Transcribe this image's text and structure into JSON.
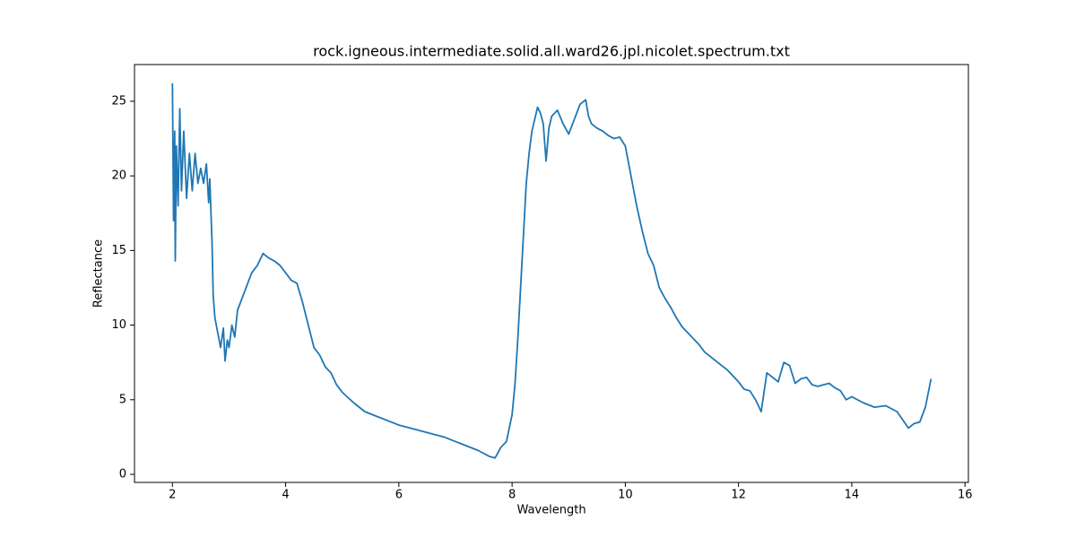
{
  "chart_data": {
    "type": "line",
    "title": "rock.igneous.intermediate.solid.all.ward26.jpl.nicolet.spectrum.txt",
    "x_label": "Wavelength",
    "y_label": "Reflectance",
    "color": "#1f77b4",
    "grid": false,
    "xlim": [
      1.33,
      16.06
    ],
    "ylim": [
      -0.54,
      27.46
    ],
    "xticks": [
      2,
      4,
      6,
      8,
      10,
      12,
      14,
      16
    ],
    "yticks": [
      0,
      5,
      10,
      15,
      20,
      25
    ],
    "x": [
      2.0,
      2.02,
      2.04,
      2.05,
      2.07,
      2.1,
      2.13,
      2.16,
      2.2,
      2.25,
      2.3,
      2.35,
      2.4,
      2.45,
      2.5,
      2.55,
      2.6,
      2.64,
      2.66,
      2.7,
      2.72,
      2.75,
      2.8,
      2.85,
      2.9,
      2.93,
      2.97,
      3.0,
      3.05,
      3.1,
      3.15,
      3.2,
      3.3,
      3.4,
      3.5,
      3.6,
      3.7,
      3.8,
      3.9,
      4.0,
      4.1,
      4.2,
      4.3,
      4.4,
      4.5,
      4.6,
      4.7,
      4.8,
      4.9,
      5.0,
      5.2,
      5.4,
      5.6,
      5.8,
      6.0,
      6.2,
      6.4,
      6.6,
      6.8,
      7.0,
      7.2,
      7.4,
      7.6,
      7.7,
      7.8,
      7.9,
      8.0,
      8.05,
      8.1,
      8.15,
      8.2,
      8.25,
      8.3,
      8.35,
      8.4,
      8.45,
      8.5,
      8.55,
      8.6,
      8.65,
      8.7,
      8.8,
      8.9,
      9.0,
      9.1,
      9.2,
      9.3,
      9.35,
      9.4,
      9.5,
      9.6,
      9.7,
      9.8,
      9.9,
      10.0,
      10.1,
      10.2,
      10.3,
      10.4,
      10.5,
      10.6,
      10.7,
      10.8,
      10.9,
      11.0,
      11.1,
      11.2,
      11.3,
      11.4,
      11.5,
      11.6,
      11.7,
      11.8,
      11.9,
      12.0,
      12.1,
      12.2,
      12.3,
      12.4,
      12.45,
      12.5,
      12.6,
      12.7,
      12.8,
      12.9,
      13.0,
      13.1,
      13.2,
      13.3,
      13.4,
      13.5,
      13.6,
      13.7,
      13.8,
      13.9,
      14.0,
      14.2,
      14.4,
      14.6,
      14.8,
      15.0,
      15.1,
      15.2,
      15.3,
      15.4
    ],
    "values": [
      26.2,
      17,
      23,
      14.3,
      22,
      18,
      24.5,
      19,
      23,
      18.5,
      21.5,
      19,
      21.5,
      19.5,
      20.5,
      19.5,
      20.8,
      18.2,
      19.8,
      15.5,
      12,
      10.5,
      9.5,
      8.5,
      9.8,
      7.6,
      9,
      8.5,
      10,
      9.2,
      11,
      11.5,
      12.5,
      13.5,
      14,
      14.8,
      14.5,
      14.3,
      14,
      13.5,
      13,
      12.8,
      11.5,
      10,
      8.5,
      8,
      7.2,
      6.8,
      6,
      5.5,
      4.8,
      4.2,
      3.9,
      3.6,
      3.3,
      3.1,
      2.9,
      2.7,
      2.5,
      2.2,
      1.9,
      1.6,
      1.2,
      1.1,
      1.8,
      2.2,
      4,
      6,
      9,
      12.5,
      16,
      19.5,
      21.5,
      23,
      23.8,
      24.6,
      24.2,
      23.5,
      21,
      23.2,
      24,
      24.4,
      23.5,
      22.8,
      23.8,
      24.8,
      25.1,
      24,
      23.5,
      23.2,
      23,
      22.7,
      22.5,
      22.6,
      22,
      20,
      18,
      16.3,
      14.8,
      14,
      12.5,
      11.8,
      11.2,
      10.5,
      9.9,
      9.5,
      9.1,
      8.7,
      8.2,
      7.9,
      7.6,
      7.3,
      7.0,
      6.6,
      6.2,
      5.7,
      5.6,
      5.0,
      4.2,
      5.5,
      6.8,
      6.5,
      6.2,
      7.5,
      7.3,
      6.1,
      6.4,
      6.5,
      6.0,
      5.9,
      6.0,
      6.1,
      5.8,
      5.6,
      5.0,
      5.2,
      4.8,
      4.5,
      4.6,
      4.2,
      3.1,
      3.4,
      3.5,
      4.5,
      6.4
    ]
  }
}
